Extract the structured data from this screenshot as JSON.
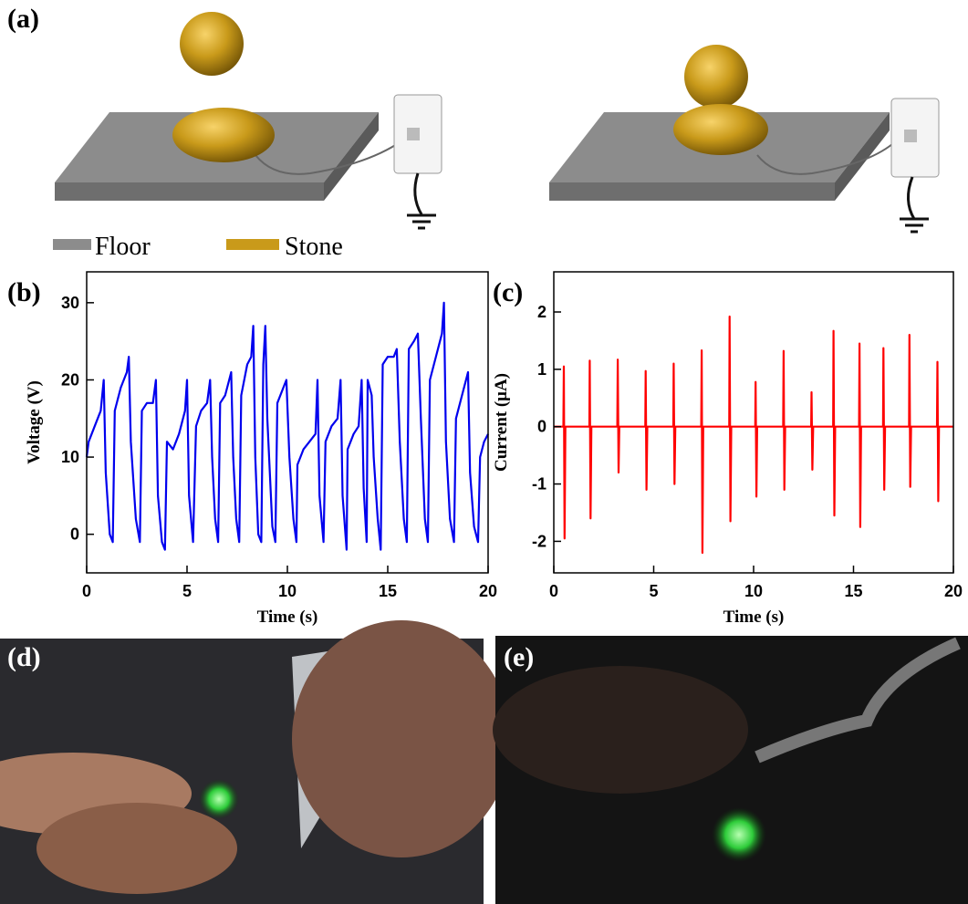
{
  "panel_labels": {
    "a": "(a)",
    "b": "(b)",
    "c": "(c)",
    "d": "(d)",
    "e": "(e)"
  },
  "legend": {
    "floor": "Floor",
    "stone": "Stone"
  },
  "chart_data": [
    {
      "type": "line",
      "color": "#0000ee",
      "xlabel": "Time (s)",
      "ylabel": "Voltage (V)",
      "xlim": [
        0,
        20
      ],
      "ylim": [
        -5,
        34
      ],
      "xticks": [
        0,
        5,
        10,
        15,
        20
      ],
      "yticks": [
        0,
        10,
        20,
        30
      ],
      "x": [
        0,
        0.1,
        0.4,
        0.7,
        0.85,
        0.95,
        1.15,
        1.3,
        1.4,
        1.7,
        2.0,
        2.1,
        2.2,
        2.45,
        2.65,
        2.75,
        3.0,
        3.3,
        3.45,
        3.55,
        3.75,
        3.9,
        4.0,
        4.3,
        4.6,
        4.9,
        5.0,
        5.1,
        5.3,
        5.45,
        5.7,
        6.0,
        6.15,
        6.25,
        6.4,
        6.55,
        6.65,
        6.9,
        7.1,
        7.2,
        7.3,
        7.45,
        7.6,
        7.7,
        8.0,
        8.2,
        8.3,
        8.4,
        8.55,
        8.7,
        8.8,
        8.9,
        9.0,
        9.25,
        9.4,
        9.5,
        9.8,
        9.95,
        10.1,
        10.3,
        10.45,
        10.5,
        10.8,
        11.1,
        11.4,
        11.5,
        11.6,
        11.8,
        11.9,
        12.2,
        12.5,
        12.65,
        12.75,
        12.95,
        13.0,
        13.3,
        13.55,
        13.7,
        13.8,
        13.95,
        14.0,
        14.2,
        14.3,
        14.5,
        14.65,
        14.75,
        15.0,
        15.3,
        15.45,
        15.6,
        15.8,
        15.95,
        16.05,
        16.3,
        16.5,
        16.65,
        16.85,
        17.0,
        17.1,
        17.4,
        17.7,
        17.8,
        17.9,
        18.1,
        18.3,
        18.4,
        18.7,
        18.9,
        19.0,
        19.1,
        19.3,
        19.5,
        19.6,
        19.8,
        20.0
      ],
      "values": [
        10,
        12,
        14,
        16,
        20,
        8,
        0,
        -1,
        16,
        19,
        21,
        23,
        12,
        2,
        -1,
        16,
        17,
        17,
        20,
        5,
        -1,
        -2,
        12,
        11,
        13,
        16,
        20,
        5,
        -1,
        14,
        16,
        17,
        20,
        10,
        2,
        -1,
        17,
        18,
        20,
        21,
        10,
        2,
        -1,
        18,
        22,
        23,
        27,
        10,
        0,
        -1,
        22,
        27,
        15,
        1,
        -1,
        17,
        19,
        20,
        10,
        2,
        -1,
        9,
        11,
        12,
        13,
        20,
        5,
        -1,
        12,
        14,
        15,
        20,
        5,
        -2,
        11,
        13,
        14,
        20,
        6,
        -1,
        20,
        18,
        10,
        2,
        -2,
        22,
        23,
        23,
        24,
        12,
        2,
        -1,
        24,
        25,
        26,
        15,
        2,
        -1,
        20,
        23,
        26,
        30,
        12,
        2,
        -1,
        15,
        18,
        20,
        21,
        8,
        1,
        -1,
        10,
        12,
        13
      ]
    },
    {
      "type": "line",
      "color": "#ff0000",
      "xlabel": "Time (s)",
      "ylabel": "Current (μA)",
      "xlim": [
        0,
        20
      ],
      "ylim": [
        -2.55,
        2.7
      ],
      "xticks": [
        0,
        5,
        10,
        15,
        20
      ],
      "yticks": [
        -2,
        -1,
        0,
        1,
        2
      ],
      "x": [
        0,
        0.48,
        0.5,
        0.54,
        0.58,
        1.78,
        1.8,
        1.84,
        1.88,
        3.18,
        3.2,
        3.24,
        3.28,
        4.58,
        4.6,
        4.64,
        4.68,
        5.98,
        6.0,
        6.04,
        6.08,
        7.38,
        7.4,
        7.44,
        7.48,
        8.78,
        8.8,
        8.84,
        8.88,
        10.08,
        10.1,
        10.14,
        10.18,
        11.48,
        11.5,
        11.54,
        11.58,
        12.88,
        12.9,
        12.94,
        12.98,
        13.98,
        14.0,
        14.04,
        14.08,
        15.28,
        15.3,
        15.34,
        15.38,
        16.48,
        16.5,
        16.54,
        16.58,
        17.78,
        17.8,
        17.84,
        17.88,
        19.18,
        19.2,
        19.24,
        19.28,
        20
      ],
      "values": [
        0,
        0,
        1.05,
        -1.95,
        0,
        0,
        1.15,
        -1.6,
        0,
        0,
        1.17,
        -0.8,
        0,
        0,
        0.97,
        -1.1,
        0,
        0,
        1.1,
        -1.0,
        0,
        0,
        1.33,
        -2.2,
        0,
        0,
        1.92,
        -1.65,
        0,
        0,
        0.78,
        -1.22,
        0,
        0,
        1.32,
        -1.1,
        0,
        0,
        0.6,
        -0.75,
        0,
        0,
        1.67,
        -1.55,
        0,
        0,
        1.45,
        -1.75,
        0,
        0,
        1.37,
        -1.1,
        0,
        0,
        1.6,
        -1.05,
        0,
        0,
        1.13,
        -1.3,
        0,
        0
      ]
    }
  ]
}
